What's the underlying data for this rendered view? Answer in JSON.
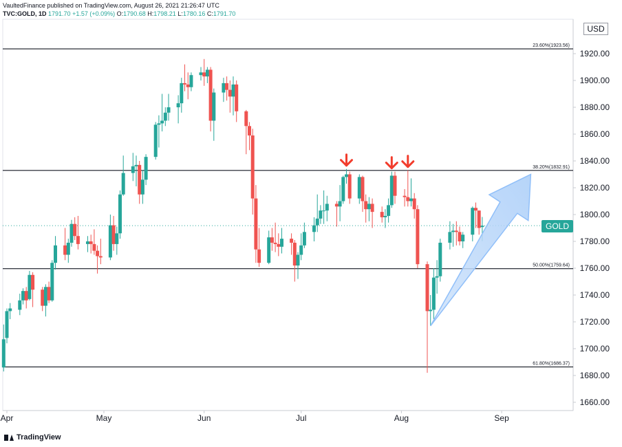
{
  "header": {
    "line1": "VaultedFinance published on TradingView.com, August 26, 2021 21:26:47 UTC",
    "symbol": "TVC:GOLD, 1D",
    "price": "1791.70",
    "change": "+1.57 (+0.09%)",
    "o_label": "O:",
    "o": "1790.68",
    "h_label": "H:",
    "h": "1798.21",
    "l_label": "L:",
    "l": "1780.16",
    "c_label": "C:",
    "c": "1791.70"
  },
  "currency": "USD",
  "price_tag": "GOLD",
  "brand": "TradingView",
  "colors": {
    "up": "#26a69a",
    "down": "#ef5350",
    "arrow_red": "#f23c2c",
    "arrow_blue": "#90bff9"
  },
  "chart_data": {
    "type": "candlestick",
    "y_range": [
      1645,
      1935
    ],
    "y_ticks": [
      "1660.00",
      "1680.00",
      "1700.00",
      "1720.00",
      "1740.00",
      "1760.00",
      "1780.00",
      "1800.00",
      "1820.00",
      "1840.00",
      "1860.00",
      "1880.00",
      "1900.00",
      "1920.00"
    ],
    "x_ticks": [
      {
        "label": "Apr",
        "date": "2021-04-01"
      },
      {
        "label": "May",
        "date": "2021-05-01"
      },
      {
        "label": "Jun",
        "date": "2021-06-01"
      },
      {
        "label": "Jul",
        "date": "2021-07-01"
      },
      {
        "label": "Aug",
        "date": "2021-08-01"
      },
      {
        "label": "Sep",
        "date": "2021-09-01"
      }
    ],
    "fib_levels": [
      {
        "label": "23.60%(1923.56)",
        "value": 1923.56
      },
      {
        "label": "38.20%(1832.91)",
        "value": 1832.91
      },
      {
        "label": "50.00%(1759.64)",
        "value": 1759.64
      },
      {
        "label": "61.80%(1686.37)",
        "value": 1686.37
      }
    ],
    "current_price": 1791.7,
    "candles": [
      {
        "d": "2021-03-31",
        "o": 1686,
        "h": 1718,
        "l": 1683,
        "c": 1707
      },
      {
        "d": "2021-04-01",
        "o": 1708,
        "h": 1730,
        "l": 1704,
        "c": 1728
      },
      {
        "d": "2021-04-02",
        "o": 1728,
        "h": 1734,
        "l": 1722,
        "c": 1730
      },
      {
        "d": "2021-04-05",
        "o": 1729,
        "h": 1741,
        "l": 1725,
        "c": 1736
      },
      {
        "d": "2021-04-06",
        "o": 1736,
        "h": 1745,
        "l": 1733,
        "c": 1743
      },
      {
        "d": "2021-04-07",
        "o": 1743,
        "h": 1746,
        "l": 1730,
        "c": 1736
      },
      {
        "d": "2021-04-08",
        "o": 1737,
        "h": 1758,
        "l": 1736,
        "c": 1755
      },
      {
        "d": "2021-04-09",
        "o": 1755,
        "h": 1757,
        "l": 1731,
        "c": 1744
      },
      {
        "d": "2021-04-12",
        "o": 1744,
        "h": 1746,
        "l": 1728,
        "c": 1732
      },
      {
        "d": "2021-04-13",
        "o": 1732,
        "h": 1748,
        "l": 1724,
        "c": 1746
      },
      {
        "d": "2021-04-14",
        "o": 1746,
        "h": 1750,
        "l": 1734,
        "c": 1736
      },
      {
        "d": "2021-04-15",
        "o": 1736,
        "h": 1766,
        "l": 1735,
        "c": 1764
      },
      {
        "d": "2021-04-16",
        "o": 1764,
        "h": 1784,
        "l": 1759,
        "c": 1777
      },
      {
        "d": "2021-04-19",
        "o": 1777,
        "h": 1790,
        "l": 1766,
        "c": 1770
      },
      {
        "d": "2021-04-20",
        "o": 1770,
        "h": 1782,
        "l": 1764,
        "c": 1779
      },
      {
        "d": "2021-04-21",
        "o": 1779,
        "h": 1796,
        "l": 1776,
        "c": 1793
      },
      {
        "d": "2021-04-22",
        "o": 1793,
        "h": 1798,
        "l": 1781,
        "c": 1784
      },
      {
        "d": "2021-04-23",
        "o": 1784,
        "h": 1799,
        "l": 1774,
        "c": 1778
      },
      {
        "d": "2021-04-26",
        "o": 1778,
        "h": 1784,
        "l": 1772,
        "c": 1780
      },
      {
        "d": "2021-04-27",
        "o": 1780,
        "h": 1785,
        "l": 1771,
        "c": 1778
      },
      {
        "d": "2021-04-28",
        "o": 1778,
        "h": 1789,
        "l": 1770,
        "c": 1773
      },
      {
        "d": "2021-04-29",
        "o": 1773,
        "h": 1777,
        "l": 1756,
        "c": 1769
      },
      {
        "d": "2021-04-30",
        "o": 1769,
        "h": 1782,
        "l": 1763,
        "c": 1768
      },
      {
        "d": "2021-05-03",
        "o": 1768,
        "h": 1800,
        "l": 1766,
        "c": 1792
      },
      {
        "d": "2021-05-04",
        "o": 1792,
        "h": 1799,
        "l": 1773,
        "c": 1778
      },
      {
        "d": "2021-05-05",
        "o": 1778,
        "h": 1791,
        "l": 1770,
        "c": 1786
      },
      {
        "d": "2021-05-06",
        "o": 1786,
        "h": 1818,
        "l": 1782,
        "c": 1815
      },
      {
        "d": "2021-05-07",
        "o": 1815,
        "h": 1844,
        "l": 1814,
        "c": 1831
      },
      {
        "d": "2021-05-10",
        "o": 1831,
        "h": 1846,
        "l": 1825,
        "c": 1836
      },
      {
        "d": "2021-05-11",
        "o": 1836,
        "h": 1844,
        "l": 1821,
        "c": 1837
      },
      {
        "d": "2021-05-12",
        "o": 1837,
        "h": 1840,
        "l": 1808,
        "c": 1815
      },
      {
        "d": "2021-05-13",
        "o": 1815,
        "h": 1833,
        "l": 1808,
        "c": 1826
      },
      {
        "d": "2021-05-14",
        "o": 1826,
        "h": 1845,
        "l": 1822,
        "c": 1843
      },
      {
        "d": "2021-05-17",
        "o": 1843,
        "h": 1869,
        "l": 1841,
        "c": 1867
      },
      {
        "d": "2021-05-18",
        "o": 1867,
        "h": 1874,
        "l": 1850,
        "c": 1868
      },
      {
        "d": "2021-05-19",
        "o": 1868,
        "h": 1890,
        "l": 1862,
        "c": 1870
      },
      {
        "d": "2021-05-20",
        "o": 1870,
        "h": 1880,
        "l": 1866,
        "c": 1876
      },
      {
        "d": "2021-05-21",
        "o": 1876,
        "h": 1890,
        "l": 1870,
        "c": 1880
      },
      {
        "d": "2021-05-24",
        "o": 1880,
        "h": 1889,
        "l": 1868,
        "c": 1883
      },
      {
        "d": "2021-05-25",
        "o": 1883,
        "h": 1902,
        "l": 1876,
        "c": 1898
      },
      {
        "d": "2021-05-26",
        "o": 1898,
        "h": 1912,
        "l": 1892,
        "c": 1897
      },
      {
        "d": "2021-05-27",
        "o": 1897,
        "h": 1906,
        "l": 1886,
        "c": 1895
      },
      {
        "d": "2021-05-28",
        "o": 1895,
        "h": 1906,
        "l": 1892,
        "c": 1904
      },
      {
        "d": "2021-05-31",
        "o": 1904,
        "h": 1910,
        "l": 1900,
        "c": 1906
      },
      {
        "d": "2021-06-01",
        "o": 1906,
        "h": 1916,
        "l": 1896,
        "c": 1903
      },
      {
        "d": "2021-06-02",
        "o": 1903,
        "h": 1910,
        "l": 1898,
        "c": 1908
      },
      {
        "d": "2021-06-03",
        "o": 1908,
        "h": 1910,
        "l": 1862,
        "c": 1870
      },
      {
        "d": "2021-06-04",
        "o": 1870,
        "h": 1894,
        "l": 1855,
        "c": 1891
      },
      {
        "d": "2021-06-07",
        "o": 1891,
        "h": 1902,
        "l": 1884,
        "c": 1898
      },
      {
        "d": "2021-06-08",
        "o": 1898,
        "h": 1903,
        "l": 1885,
        "c": 1893
      },
      {
        "d": "2021-06-09",
        "o": 1893,
        "h": 1900,
        "l": 1876,
        "c": 1888
      },
      {
        "d": "2021-06-10",
        "o": 1888,
        "h": 1903,
        "l": 1874,
        "c": 1897
      },
      {
        "d": "2021-06-11",
        "o": 1897,
        "h": 1900,
        "l": 1869,
        "c": 1877
      },
      {
        "d": "2021-06-14",
        "o": 1877,
        "h": 1878,
        "l": 1845,
        "c": 1866
      },
      {
        "d": "2021-06-15",
        "o": 1866,
        "h": 1869,
        "l": 1848,
        "c": 1859
      },
      {
        "d": "2021-06-16",
        "o": 1859,
        "h": 1864,
        "l": 1800,
        "c": 1812
      },
      {
        "d": "2021-06-17",
        "o": 1812,
        "h": 1822,
        "l": 1764,
        "c": 1774
      },
      {
        "d": "2021-06-18",
        "o": 1774,
        "h": 1790,
        "l": 1761,
        "c": 1764
      },
      {
        "d": "2021-06-21",
        "o": 1764,
        "h": 1788,
        "l": 1763,
        "c": 1783
      },
      {
        "d": "2021-06-22",
        "o": 1783,
        "h": 1790,
        "l": 1773,
        "c": 1779
      },
      {
        "d": "2021-06-23",
        "o": 1779,
        "h": 1794,
        "l": 1772,
        "c": 1778
      },
      {
        "d": "2021-06-24",
        "o": 1778,
        "h": 1786,
        "l": 1769,
        "c": 1776
      },
      {
        "d": "2021-06-25",
        "o": 1776,
        "h": 1790,
        "l": 1771,
        "c": 1782
      },
      {
        "d": "2021-06-28",
        "o": 1782,
        "h": 1786,
        "l": 1770,
        "c": 1779
      },
      {
        "d": "2021-06-29",
        "o": 1779,
        "h": 1781,
        "l": 1750,
        "c": 1762
      },
      {
        "d": "2021-06-30",
        "o": 1762,
        "h": 1772,
        "l": 1752,
        "c": 1770
      },
      {
        "d": "2021-07-01",
        "o": 1770,
        "h": 1786,
        "l": 1766,
        "c": 1777
      },
      {
        "d": "2021-07-02",
        "o": 1777,
        "h": 1794,
        "l": 1775,
        "c": 1787
      },
      {
        "d": "2021-07-05",
        "o": 1787,
        "h": 1798,
        "l": 1780,
        "c": 1792
      },
      {
        "d": "2021-07-06",
        "o": 1792,
        "h": 1815,
        "l": 1787,
        "c": 1797
      },
      {
        "d": "2021-07-07",
        "o": 1797,
        "h": 1807,
        "l": 1793,
        "c": 1803
      },
      {
        "d": "2021-07-08",
        "o": 1803,
        "h": 1818,
        "l": 1793,
        "c": 1803
      },
      {
        "d": "2021-07-09",
        "o": 1803,
        "h": 1814,
        "l": 1795,
        "c": 1808
      },
      {
        "d": "2021-07-12",
        "o": 1808,
        "h": 1810,
        "l": 1791,
        "c": 1806
      },
      {
        "d": "2021-07-13",
        "o": 1806,
        "h": 1822,
        "l": 1795,
        "c": 1810
      },
      {
        "d": "2021-07-14",
        "o": 1810,
        "h": 1829,
        "l": 1808,
        "c": 1828
      },
      {
        "d": "2021-07-15",
        "o": 1828,
        "h": 1834,
        "l": 1823,
        "c": 1830
      },
      {
        "d": "2021-07-16",
        "o": 1830,
        "h": 1832,
        "l": 1808,
        "c": 1812
      },
      {
        "d": "2021-07-19",
        "o": 1812,
        "h": 1830,
        "l": 1808,
        "c": 1828
      },
      {
        "d": "2021-07-20",
        "o": 1828,
        "h": 1829,
        "l": 1802,
        "c": 1810
      },
      {
        "d": "2021-07-21",
        "o": 1810,
        "h": 1815,
        "l": 1794,
        "c": 1804
      },
      {
        "d": "2021-07-22",
        "o": 1804,
        "h": 1813,
        "l": 1795,
        "c": 1808
      },
      {
        "d": "2021-07-23",
        "o": 1808,
        "h": 1812,
        "l": 1790,
        "c": 1802
      },
      {
        "d": "2021-07-26",
        "o": 1802,
        "h": 1806,
        "l": 1794,
        "c": 1798
      },
      {
        "d": "2021-07-27",
        "o": 1798,
        "h": 1804,
        "l": 1790,
        "c": 1799
      },
      {
        "d": "2021-07-28",
        "o": 1799,
        "h": 1812,
        "l": 1794,
        "c": 1807
      },
      {
        "d": "2021-07-29",
        "o": 1807,
        "h": 1832,
        "l": 1805,
        "c": 1829
      },
      {
        "d": "2021-07-30",
        "o": 1829,
        "h": 1832,
        "l": 1808,
        "c": 1814
      },
      {
        "d": "2021-08-02",
        "o": 1814,
        "h": 1819,
        "l": 1806,
        "c": 1813
      },
      {
        "d": "2021-08-03",
        "o": 1813,
        "h": 1833,
        "l": 1806,
        "c": 1810
      },
      {
        "d": "2021-08-04",
        "o": 1810,
        "h": 1827,
        "l": 1806,
        "c": 1812
      },
      {
        "d": "2021-08-05",
        "o": 1812,
        "h": 1816,
        "l": 1797,
        "c": 1804
      },
      {
        "d": "2021-08-06",
        "o": 1804,
        "h": 1807,
        "l": 1760,
        "c": 1763
      },
      {
        "d": "2021-08-09",
        "o": 1763,
        "h": 1765,
        "l": 1682,
        "c": 1728
      },
      {
        "d": "2021-08-10",
        "o": 1728,
        "h": 1740,
        "l": 1717,
        "c": 1729
      },
      {
        "d": "2021-08-11",
        "o": 1729,
        "h": 1760,
        "l": 1722,
        "c": 1753
      },
      {
        "d": "2021-08-12",
        "o": 1753,
        "h": 1766,
        "l": 1741,
        "c": 1754
      },
      {
        "d": "2021-08-13",
        "o": 1754,
        "h": 1782,
        "l": 1750,
        "c": 1779
      },
      {
        "d": "2021-08-16",
        "o": 1779,
        "h": 1795,
        "l": 1774,
        "c": 1787
      },
      {
        "d": "2021-08-17",
        "o": 1787,
        "h": 1793,
        "l": 1776,
        "c": 1788
      },
      {
        "d": "2021-08-18",
        "o": 1788,
        "h": 1795,
        "l": 1777,
        "c": 1787
      },
      {
        "d": "2021-08-19",
        "o": 1787,
        "h": 1791,
        "l": 1777,
        "c": 1780
      },
      {
        "d": "2021-08-20",
        "o": 1780,
        "h": 1787,
        "l": 1775,
        "c": 1785
      },
      {
        "d": "2021-08-23",
        "o": 1785,
        "h": 1806,
        "l": 1780,
        "c": 1805
      },
      {
        "d": "2021-08-24",
        "o": 1805,
        "h": 1809,
        "l": 1790,
        "c": 1803
      },
      {
        "d": "2021-08-25",
        "o": 1803,
        "h": 1803,
        "l": 1785,
        "c": 1790
      },
      {
        "d": "2021-08-26",
        "o": 1790.68,
        "h": 1798.21,
        "l": 1780.16,
        "c": 1791.7
      }
    ],
    "red_arrows": [
      "2021-07-15",
      "2021-07-29",
      "2021-08-03"
    ],
    "blue_arrow": {
      "from": {
        "d": "2021-08-10",
        "v": 1717
      },
      "to": {
        "d": "2021-09-10",
        "v": 1830
      }
    }
  }
}
